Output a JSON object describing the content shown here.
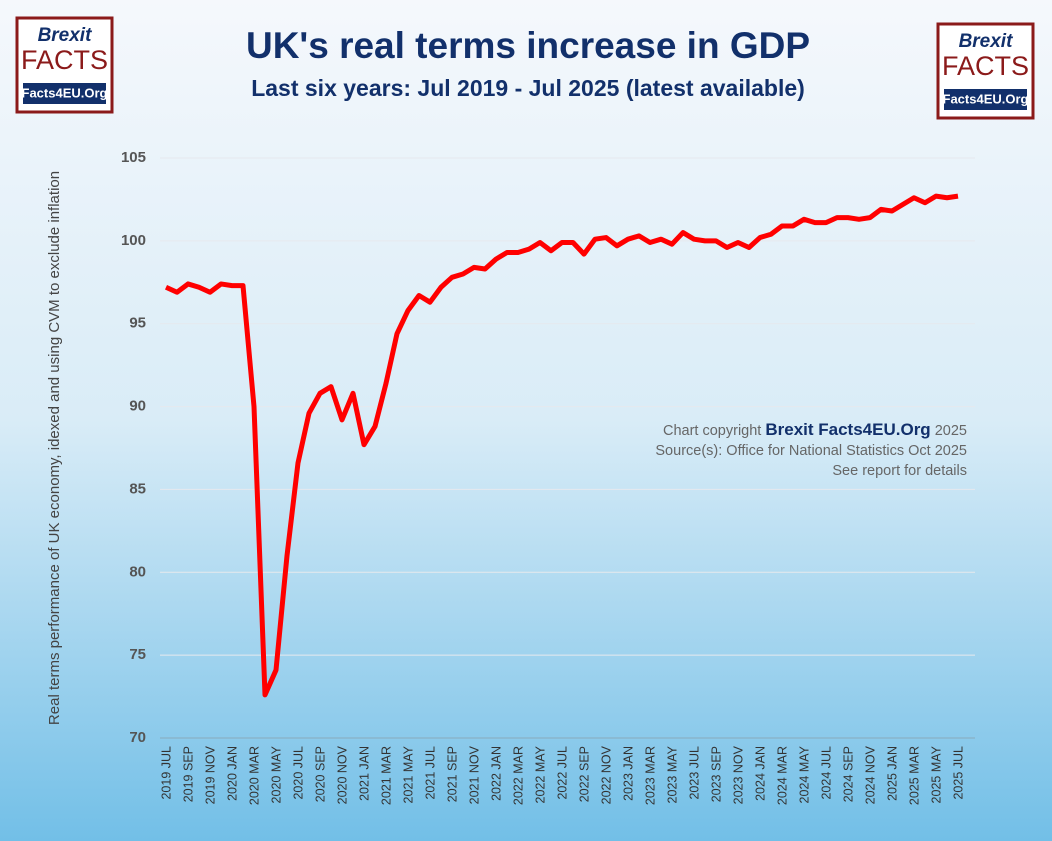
{
  "logo": {
    "line1": "Brexit",
    "line2": "FACTS",
    "line3": "Facts4EU.Org"
  },
  "chart_data": {
    "type": "line",
    "title": "UK's real terms increase in GDP",
    "subtitle": "Last six years: Jul 2019 - Jul 2025 (latest available)",
    "y_label": "Real terms performance of UK economy, idexed and using CVM to exclude inflation",
    "annotations": [
      "Chart copyright",
      "Brexit Facts4EU.Org",
      "2025",
      "Source(s): Office for National Statistics Oct 2025",
      "See report for details"
    ],
    "categories": [
      "2019 JUL",
      null,
      "2019 SEP",
      null,
      "2019 NOV",
      null,
      "2020 JAN",
      null,
      "2020 MAR",
      null,
      "2020 MAY",
      null,
      "2020 JUL",
      null,
      "2020 SEP",
      null,
      "2020 NOV",
      null,
      "2021 JAN",
      null,
      "2021 MAR",
      null,
      "2021 MAY",
      null,
      "2021 JUL",
      null,
      "2021 SEP",
      null,
      "2021 NOV",
      null,
      "2022 JAN",
      null,
      "2022 MAR",
      null,
      "2022 MAY",
      null,
      "2022 JUL",
      null,
      "2022 SEP",
      null,
      "2022 NOV",
      null,
      "2023 JAN",
      null,
      "2023 MAR",
      null,
      "2023 MAY",
      null,
      "2023 JUL",
      null,
      "2023 SEP",
      null,
      "2023 NOV",
      null,
      "2024 JAN",
      null,
      "2024 MAR",
      null,
      "2024 MAY",
      null,
      "2024 JUL",
      null,
      "2024 SEP",
      null,
      "2024 NOV",
      null,
      "2025 JAN",
      null,
      "2025 MAR",
      null,
      "2025 MAY",
      null,
      "2025 JUL"
    ],
    "values": [
      97.2,
      96.9,
      97.4,
      97.2,
      96.9,
      97.4,
      97.3,
      97.3,
      90,
      72.6,
      74.1,
      81.0,
      86.6,
      89.6,
      90.8,
      91.2,
      89.2,
      90.8,
      87.7,
      88.8,
      91.4,
      94.4,
      95.8,
      96.7,
      96.3,
      97.2,
      97.8,
      98.0,
      98.4,
      98.3,
      98.9,
      99.3,
      99.3,
      99.5,
      99.9,
      99.4,
      99.9,
      99.9,
      99.2,
      100.1,
      100.2,
      99.7,
      100.1,
      100.3,
      99.9,
      100.1,
      99.8,
      100.5,
      100.1,
      100.0,
      100.0,
      99.6,
      99.9,
      99.6,
      100.2,
      100.4,
      100.9,
      100.9,
      101.3,
      101.1,
      101.1,
      101.4,
      101.4,
      101.3,
      101.4,
      101.9,
      101.8,
      102.2,
      102.6,
      102.3,
      102.7,
      102.6,
      102.7
    ],
    "color": "#ff0000",
    "ylim": [
      70,
      105
    ],
    "yticks": [
      70,
      75,
      80,
      85,
      90,
      95,
      100,
      105
    ],
    "grid": true
  }
}
